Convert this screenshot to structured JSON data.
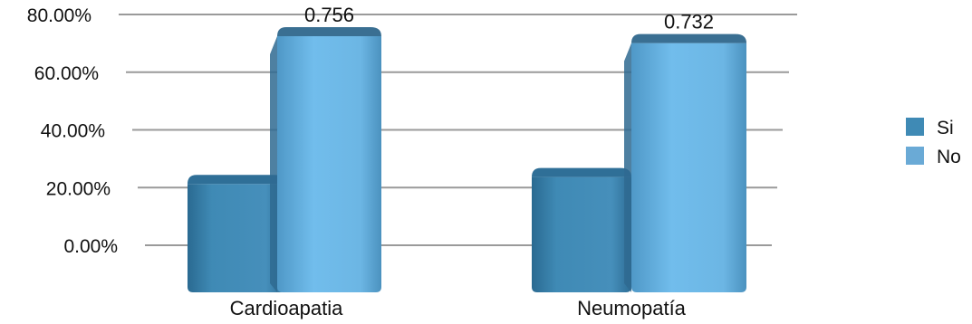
{
  "chart_data": {
    "type": "bar",
    "title": "",
    "xlabel": "",
    "ylabel": "",
    "categories": [
      "Cardioapatia",
      "Neumopatía"
    ],
    "series": [
      {
        "name": "Si",
        "values": [
          0.244,
          0.268
        ],
        "color": "#3f8ab5",
        "labels": [
          "",
          ""
        ]
      },
      {
        "name": "No",
        "values": [
          0.756,
          0.732
        ],
        "color": "#6db8e8",
        "labels": [
          "0.756",
          "0.732"
        ]
      }
    ],
    "yticks": [
      {
        "value": 0.0,
        "label": "0.00%"
      },
      {
        "value": 0.2,
        "label": "20.00%"
      },
      {
        "value": 0.4,
        "label": "40.00%"
      },
      {
        "value": 0.6,
        "label": "60.00%"
      },
      {
        "value": 0.8,
        "label": "80.00%"
      }
    ],
    "ylim": [
      0,
      0.8
    ],
    "grid": true,
    "legend_position": "right"
  }
}
